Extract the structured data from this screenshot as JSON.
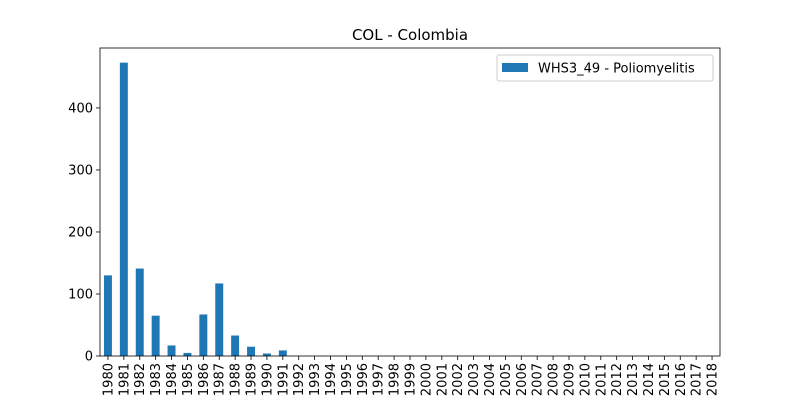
{
  "chart_data": {
    "type": "bar",
    "title": "COL - Colombia",
    "xlabel": "",
    "ylabel": "",
    "categories": [
      "1980",
      "1981",
      "1982",
      "1983",
      "1984",
      "1985",
      "1986",
      "1987",
      "1988",
      "1989",
      "1990",
      "1991",
      "1992",
      "1993",
      "1994",
      "1995",
      "1996",
      "1997",
      "1998",
      "1999",
      "2000",
      "2001",
      "2002",
      "2003",
      "2004",
      "2005",
      "2006",
      "2007",
      "2008",
      "2009",
      "2010",
      "2011",
      "2012",
      "2013",
      "2014",
      "2015",
      "2016",
      "2017",
      "2018"
    ],
    "series": [
      {
        "name": "WHS3_49 - Poliomyelitis",
        "color": "#1f77b4",
        "values": [
          130,
          473,
          141,
          65,
          17,
          5,
          67,
          117,
          33,
          15,
          4,
          9,
          0,
          0,
          0,
          0,
          0,
          0,
          0,
          0,
          0,
          0,
          0,
          0,
          0,
          0,
          0,
          0,
          0,
          0,
          0,
          0,
          0,
          0,
          0,
          0,
          0,
          0,
          0
        ]
      }
    ],
    "ylim": [
      0,
      496.65
    ],
    "yticks": [
      0,
      100,
      200,
      300,
      400
    ],
    "grid": false,
    "legend_position": "top-right"
  }
}
